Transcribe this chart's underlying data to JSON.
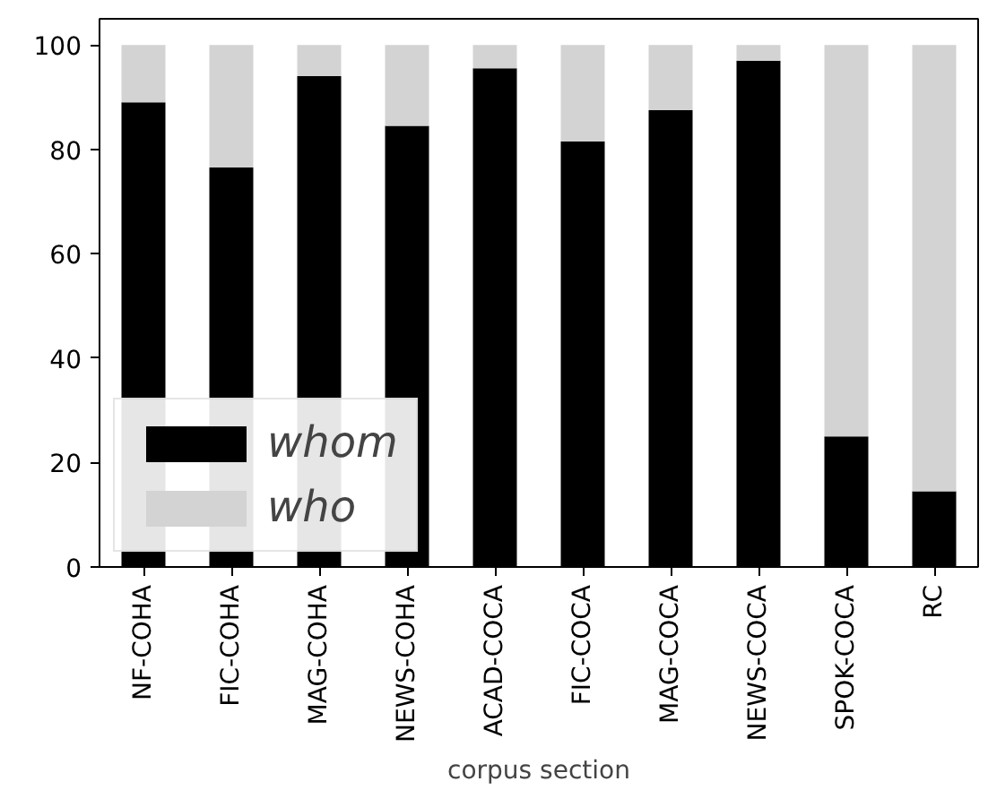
{
  "chart_data": {
    "type": "bar",
    "stacked": true,
    "xlabel": "corpus section",
    "categories": [
      "NF-COHA",
      "FIC-COHA",
      "MAG-COHA",
      "NEWS-COHA",
      "ACAD-COCA",
      "FIC-COCA",
      "MAG-COCA",
      "NEWS-COCA",
      "SPOK-COCA",
      "RC"
    ],
    "series": [
      {
        "name": "whom",
        "color": "#000000",
        "values": [
          89,
          76.5,
          94,
          84.5,
          95.5,
          81.5,
          87.5,
          97,
          25,
          14.5
        ]
      },
      {
        "name": "who",
        "color": "#d3d3d3",
        "values": [
          11,
          23.5,
          6,
          15.5,
          4.5,
          18.5,
          12.5,
          3,
          75,
          85.5
        ]
      }
    ],
    "ylim": [
      0,
      105
    ],
    "yticks": [
      0,
      20,
      40,
      60,
      80,
      100
    ],
    "grid": false,
    "legend": "bottom left"
  }
}
